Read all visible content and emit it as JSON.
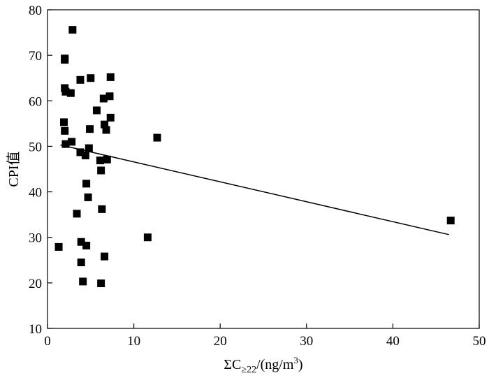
{
  "chart_data": {
    "type": "scatter",
    "xlabel": "ΣC≥22/(ng/m³)",
    "xlabel_parts": {
      "main": "ΣC",
      "sub": "≥22",
      "mid": "/(ng/m",
      "sup": "3",
      "end": ")"
    },
    "ylabel": "CPI值",
    "xlim": [
      0,
      50
    ],
    "ylim": [
      10,
      80
    ],
    "x_ticks": [
      0,
      10,
      20,
      30,
      40,
      50
    ],
    "y_ticks": [
      10,
      20,
      30,
      40,
      50,
      60,
      70,
      80
    ],
    "grid": false,
    "legend": "none",
    "series": [
      {
        "points": [
          [
            1.3,
            27.9
          ],
          [
            2.0,
            69.0
          ],
          [
            2.0,
            69.3
          ],
          [
            2.0,
            62.8
          ],
          [
            2.1,
            62.0
          ],
          [
            1.9,
            55.3
          ],
          [
            2.0,
            53.4
          ],
          [
            2.1,
            50.5
          ],
          [
            2.7,
            61.7
          ],
          [
            2.8,
            51.0
          ],
          [
            2.9,
            75.6
          ],
          [
            3.4,
            35.2
          ],
          [
            3.8,
            48.7
          ],
          [
            3.8,
            64.6
          ],
          [
            3.9,
            29.0
          ],
          [
            3.9,
            24.5
          ],
          [
            4.1,
            20.3
          ],
          [
            4.4,
            48.0
          ],
          [
            4.5,
            28.2
          ],
          [
            4.5,
            41.8
          ],
          [
            4.7,
            38.8
          ],
          [
            4.8,
            49.6
          ],
          [
            4.9,
            53.8
          ],
          [
            5.0,
            65.0
          ],
          [
            5.7,
            57.9
          ],
          [
            6.1,
            46.9
          ],
          [
            6.2,
            19.9
          ],
          [
            6.2,
            44.7
          ],
          [
            6.3,
            36.2
          ],
          [
            6.5,
            60.5
          ],
          [
            6.6,
            54.8
          ],
          [
            6.6,
            25.8
          ],
          [
            6.8,
            53.6
          ],
          [
            6.9,
            47.1
          ],
          [
            7.2,
            61.0
          ],
          [
            7.3,
            56.3
          ],
          [
            7.3,
            65.2
          ],
          [
            11.6,
            30.0
          ],
          [
            12.7,
            51.9
          ],
          [
            46.7,
            33.7
          ]
        ]
      }
    ],
    "trendline": {
      "x": [
        1.5,
        46.5
      ],
      "y": [
        50.3,
        30.6
      ]
    },
    "colors": {
      "points": "#000000",
      "line": "#000000",
      "background": "#ffffff"
    }
  }
}
